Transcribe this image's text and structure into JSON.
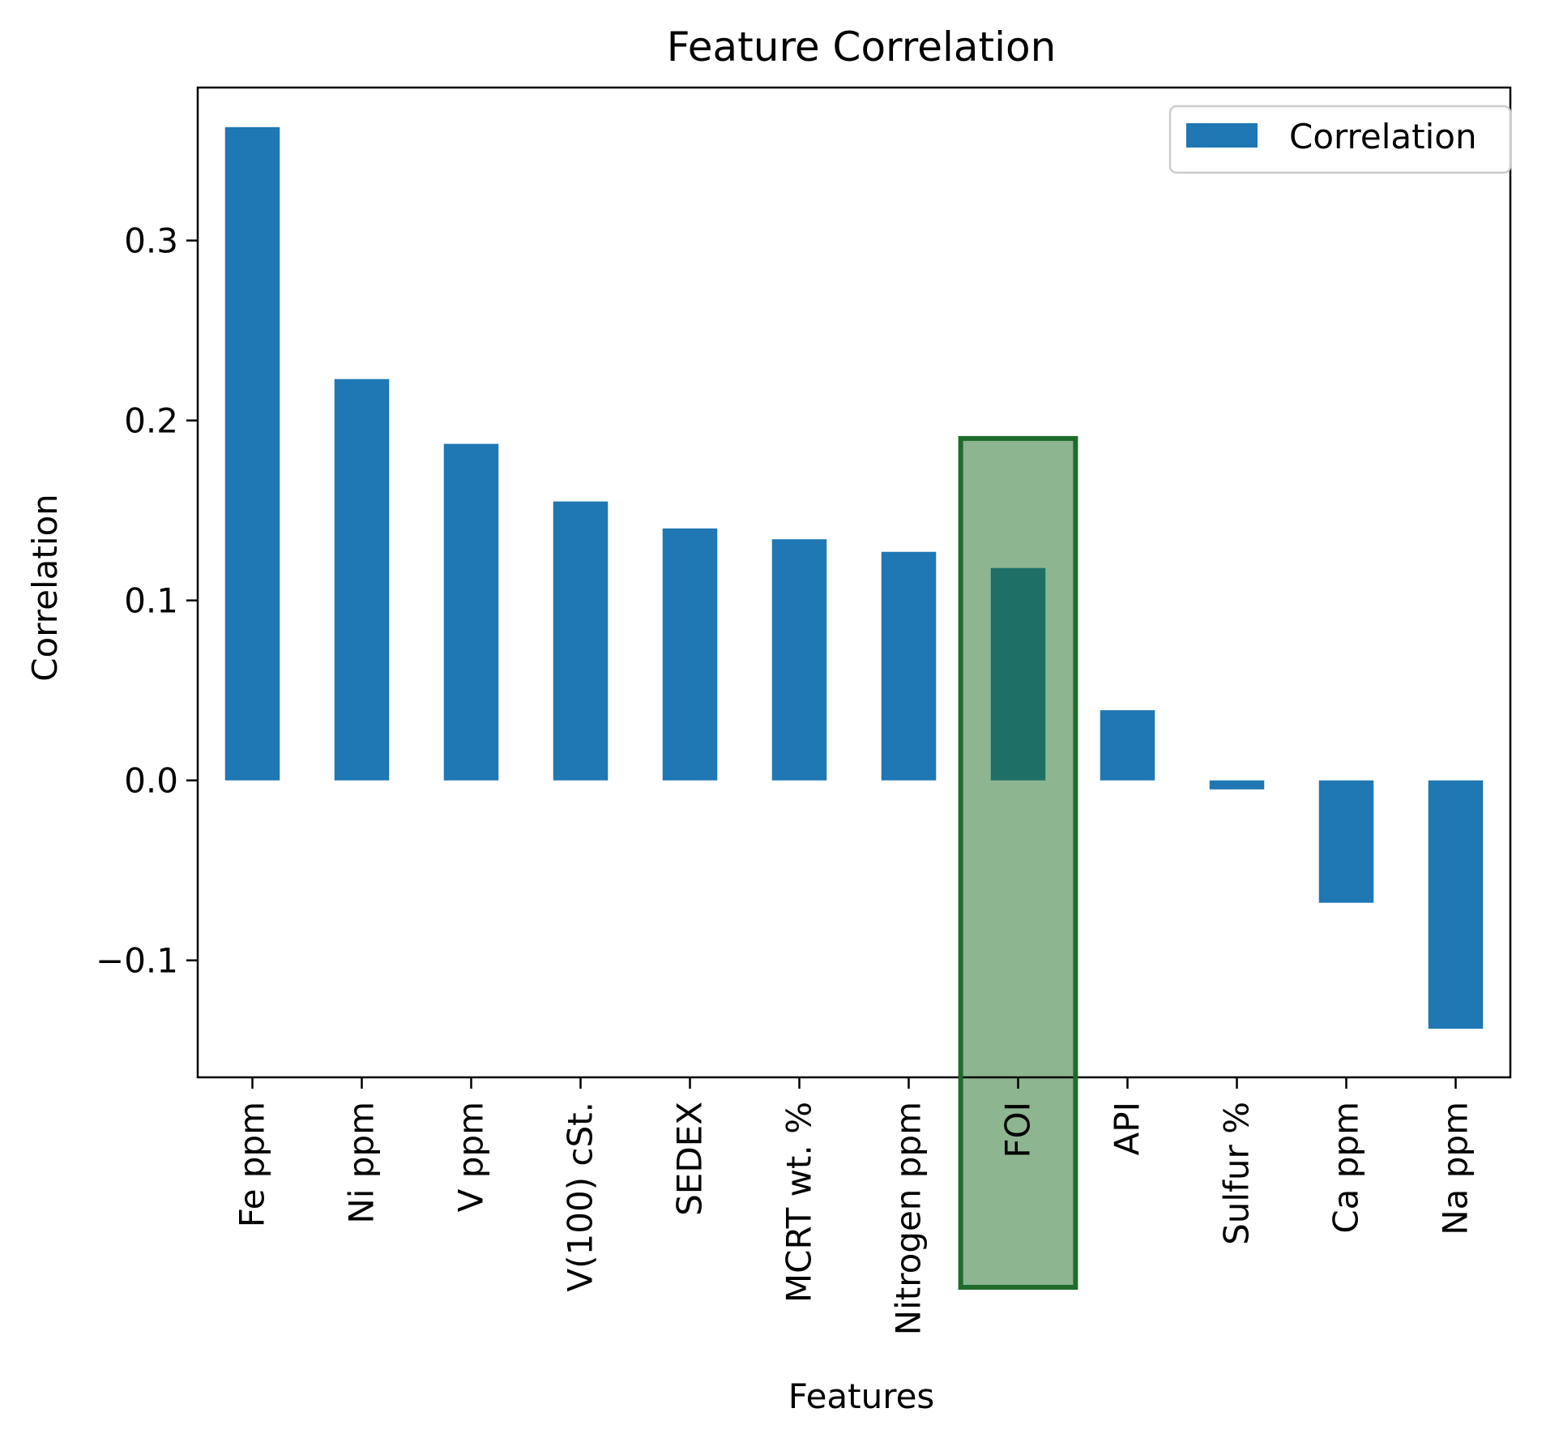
{
  "chart_data": {
    "type": "bar",
    "title": "Feature Correlation",
    "xlabel": "Features",
    "ylabel": "Correlation",
    "categories": [
      "Fe ppm",
      "Ni ppm",
      "V ppm",
      "V(100) cSt.",
      "SEDEX",
      "MCRT wt. %",
      "Nitrogen ppm",
      "FOI",
      "API",
      "Sulfur %",
      "Ca ppm",
      "Na ppm"
    ],
    "series": [
      {
        "name": "Correlation",
        "color": "#1f77b4",
        "values": [
          0.363,
          0.223,
          0.187,
          0.155,
          0.14,
          0.134,
          0.127,
          0.118,
          0.039,
          -0.005,
          -0.068,
          -0.138
        ]
      }
    ],
    "ylim": [
      -0.165,
      0.385
    ],
    "yticks": [
      -0.1,
      0.0,
      0.1,
      0.2,
      0.3
    ],
    "ytick_labels": [
      "−0.1",
      "0.0",
      "0.1",
      "0.2",
      "0.3"
    ],
    "grid": false,
    "legend": {
      "position": "upper-right",
      "entries": [
        "Correlation"
      ]
    },
    "highlight": {
      "category": "FOI",
      "fill_color": "#8db58f",
      "border_color": "#1e6b2c",
      "bar_color": "#1e7066"
    }
  }
}
